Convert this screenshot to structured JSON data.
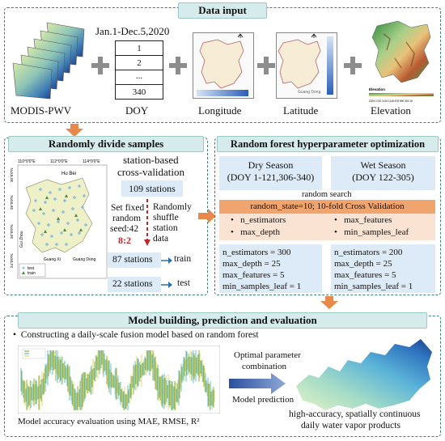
{
  "data_input": {
    "title": "Data input",
    "modis_label": "MODIS-PWV",
    "date_range": "Jan.1-Dec.5,2020",
    "doy_values": [
      "1",
      "2",
      "...",
      "340"
    ],
    "doy_label": "DOY",
    "longitude_label": "Longitude",
    "latitude_label": "Latitude",
    "elevation_label": "Elevation",
    "elevation_legend_title": "Elevation",
    "elevation_legend_ticks": "2029 1743 1414 1146 878 590 303 15",
    "map_hu_bei": "Hu Bei",
    "map_guang_dong": "Guang Dong"
  },
  "divide": {
    "title": "Randomly divide samples",
    "cv_label_1": "station-based",
    "cv_label_2": "cross-validation",
    "stations_total": "109 stations",
    "fixed_seed_1": "Set fixed",
    "fixed_seed_2": "random",
    "fixed_seed_3": "seed:42",
    "ratio": "8:2",
    "shuffle_1": "Randomly",
    "shuffle_2": "shuffle",
    "shuffle_3": "station",
    "shuffle_4": "data",
    "train_count": "87 stations",
    "train_label": "train",
    "test_count": "22 stations",
    "test_label": "test",
    "map_hu_bei": "Hu Bei",
    "map_guang_xi": "Guang Xi",
    "map_guang_dong": "Guang Dong",
    "map_gui_zhou": "Gui Zhou",
    "map_legend_test": "test",
    "map_legend_train": "train",
    "map_lon_ticks": [
      "110°0'0\"E",
      "112°0'0\"E",
      "114°0'0\"E"
    ],
    "map_lat_ticks": [
      "30°0'0\"N",
      "28°0'0\"N",
      "26°0'0\"N",
      "24°0'0\"N"
    ]
  },
  "rf": {
    "title": "Random forest hyperparameter optimization",
    "dry_1": "Dry Season",
    "dry_2": "(DOY 1-121,306-340)",
    "wet_1": "Wet Season",
    "wet_2": "(DOY 122-305)",
    "random_search": "random search",
    "search_config": "random_state=10; 10-fold Cross Validation",
    "params": [
      "n_estimators",
      "max_features",
      "max_depth",
      "min_samples_leaf"
    ],
    "dry_results": [
      "n_estimators = 300",
      "max_depth = 25",
      "max_features = 5",
      "min_samples_leaf = 1"
    ],
    "wet_results": [
      "n_estimators = 200",
      "max_depth = 25",
      "max_features = 5",
      "min_samples_leaf = 1"
    ]
  },
  "model": {
    "title": "Model building, prediction and evaluation",
    "bullet": "Constructing a daily-scale fusion model based on random forest",
    "optimal_1": "Optimal parameter",
    "optimal_2": "combination",
    "prediction": "Model prediction",
    "eval": "Model accuracy evaluation using MAE, RMSE, R²",
    "product_1": "high-accuracy, spatially continuous",
    "product_2": "daily water vapor products"
  },
  "colors": {
    "border": "#3f7f74",
    "header_bg": "#d6ecec",
    "box_blue": "#dcebf7",
    "orange_arrow": "#e8884a",
    "search_bar": "#f0a46e",
    "search_params": "#fbe3d3"
  }
}
